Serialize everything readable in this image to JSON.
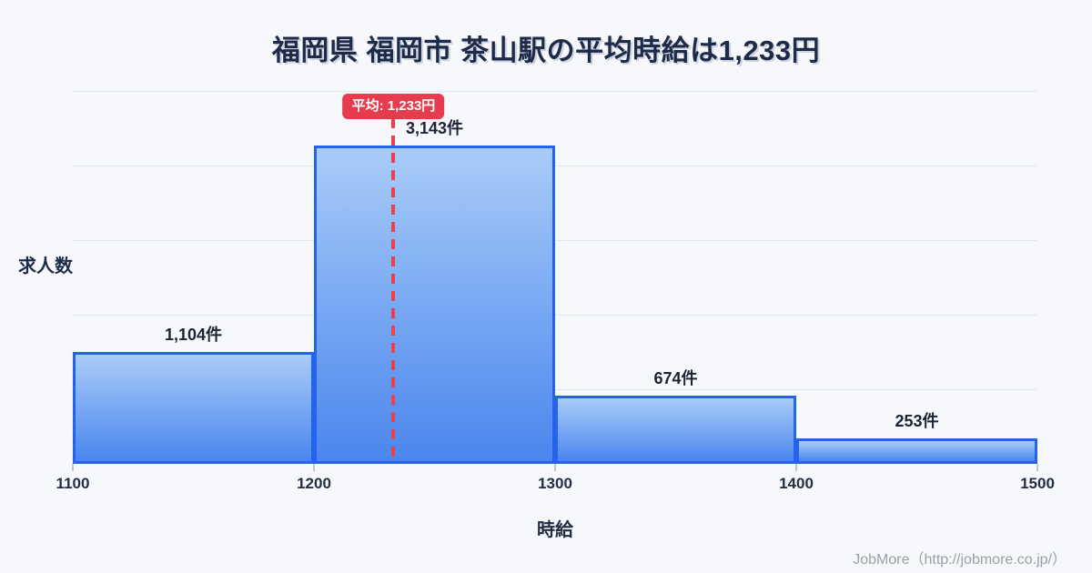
{
  "title": "福岡県 福岡市 茶山駅の平均時給は1,233円",
  "chart_data": {
    "type": "bar",
    "title": "福岡県 福岡市 茶山駅の平均時給は1,233円",
    "xlabel": "時給",
    "ylabel": "求人数",
    "xlim": [
      1100,
      1500
    ],
    "ylim": [
      0,
      3680
    ],
    "grid": true,
    "gridline_count": 5,
    "xticks": [
      "1100",
      "1200",
      "1300",
      "1400",
      "1500"
    ],
    "bins": [
      {
        "x0": 1100,
        "x1": 1200,
        "value": 1104,
        "label": "1,104件"
      },
      {
        "x0": 1200,
        "x1": 1300,
        "value": 3143,
        "label": "3,143件"
      },
      {
        "x0": 1300,
        "x1": 1400,
        "value": 674,
        "label": "674件"
      },
      {
        "x0": 1400,
        "x1": 1500,
        "value": 253,
        "label": "253件"
      }
    ],
    "average": {
      "value": 1233,
      "label": "平均: 1,233円"
    }
  },
  "footer": {
    "credit": "JobMore（http://jobmore.co.jp/）"
  },
  "style": {
    "background": "#f7f8fb",
    "title_color": "#1d2b49",
    "grid": "#e4e7ef",
    "bar_fill_top": "#a9ccf8",
    "bar_fill_bottom": "#4a86ee",
    "bar_border": "#2563eb",
    "average_line": "#e8414f",
    "badge_bg": "#e73c4e",
    "footer_color": "#99a0ab"
  }
}
